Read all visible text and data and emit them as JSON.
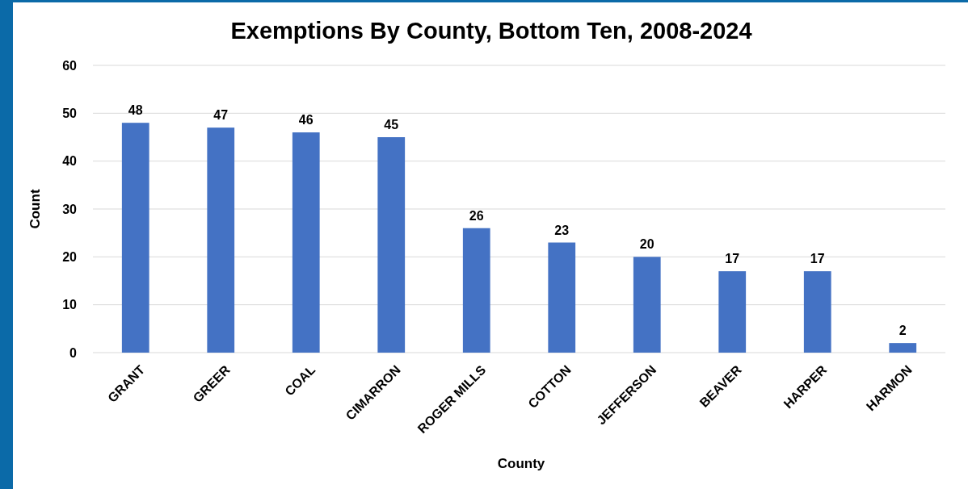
{
  "chart_data": {
    "type": "bar",
    "title": "Exemptions By County, Bottom Ten, 2008-2024",
    "xlabel": "County",
    "ylabel": "Count",
    "categories": [
      "GRANT",
      "GREER",
      "COAL",
      "CIMARRON",
      "ROGER MILLS",
      "COTTON",
      "JEFFERSON",
      "BEAVER",
      "HARPER",
      "HARMON"
    ],
    "values": [
      48,
      47,
      46,
      45,
      26,
      23,
      20,
      17,
      17,
      2
    ],
    "color": "#4472c4",
    "ylim": [
      0,
      60
    ],
    "yticks": [
      0,
      10,
      20,
      30,
      40,
      50,
      60
    ],
    "grid": "y",
    "data_labels": true
  }
}
